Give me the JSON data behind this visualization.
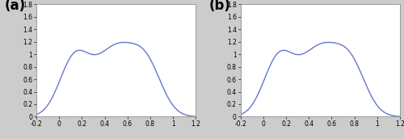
{
  "xlim": [
    -0.2,
    1.2
  ],
  "ylim": [
    0,
    1.8
  ],
  "xticks": [
    -0.2,
    0,
    0.2,
    0.4,
    0.6,
    0.8,
    1.0,
    1.2
  ],
  "yticks": [
    0,
    0.2,
    0.4,
    0.6,
    0.8,
    1.0,
    1.2,
    1.4,
    1.6,
    1.8
  ],
  "line_color": "#6677cc",
  "background_color": "#cccccc",
  "axes_bg": "#ffffff",
  "label_a": "(a)",
  "label_b": "(b)",
  "label_fontsize": 12,
  "label_fontweight": "bold",
  "mixture_a": {
    "means": [
      0.13,
      0.5,
      0.78
    ],
    "stds": [
      0.13,
      0.19,
      0.13
    ],
    "weights": [
      0.28,
      0.52,
      0.2
    ]
  },
  "mixture_b": {
    "means": [
      0.13,
      0.5,
      0.78
    ],
    "stds": [
      0.13,
      0.19,
      0.13
    ],
    "weights": [
      0.28,
      0.52,
      0.2
    ]
  }
}
